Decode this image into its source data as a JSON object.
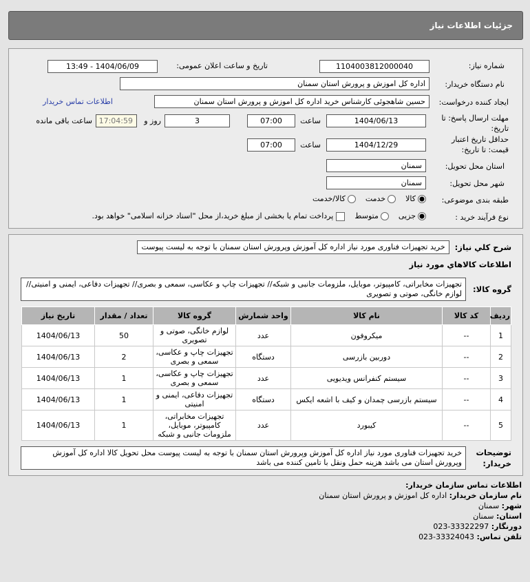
{
  "header": {
    "title": "جزئیات اطلاعات نیاز"
  },
  "form": {
    "need_number_label": "شماره نیاز:",
    "need_number": "1104003812000040",
    "announce_label": "تاریخ و ساعت اعلان عمومی:",
    "announce_value": "1404/06/09 - 13:49",
    "buyer_label": "نام دستگاه خریدار:",
    "buyer": "اداره کل اموزش و پرورش استان سمنان",
    "creator_label": "ایجاد کننده درخواست:",
    "creator": "حسین شاهجوئی کارشناس خرید اداره کل اموزش و پرورش استان سمنان",
    "contact_link": "اطلاعات تماس خریدار",
    "deadline_label": "مهلت ارسال پاسخ: تا تاریخ:",
    "deadline_date": "1404/06/13",
    "time_label": "ساعت",
    "deadline_time": "07:00",
    "days": "3",
    "days_label": "روز و",
    "remaining": "17:04:59",
    "remaining_label": "ساعت باقی مانده",
    "validity_label": "حداقل تاریخ اعتبار قیمت: تا تاریخ:",
    "validity_date": "1404/12/29",
    "validity_time": "07:00",
    "province_label": "استان محل تحویل:",
    "province": "سمنان",
    "city_label": "شهر محل تحویل:",
    "city": "سمنان",
    "category_label": "طبقه بندی موضوعی:",
    "category_options": [
      "کالا",
      "خدمت",
      "کالا/خدمت"
    ],
    "process_label": "نوع فرآیند خرید :",
    "process_options": [
      "جزیی",
      "متوسط"
    ],
    "payment_note": "پرداخت تمام یا بخشی از مبلغ خرید،از محل \"اسناد خزانه اسلامی\" خواهد بود."
  },
  "details": {
    "summary_label": "شرح کلي نیاز:",
    "summary": "خرید تجهیزات فناوری مورد نیاز اداره کل آموزش وپرورش استان سمنان با توجه به لیست پیوست",
    "goods_title": "اطلاعات کالاهاي مورد نیاز",
    "group_label": "گروه کالا:",
    "group": "تجهیزات مخابراتی، کامپیوتر، موبایل، ملزومات جانبی و شبکه// تجهیزات چاپ و عکاسی، سمعی و بصری// تجهیزات دفاعی، ایمنی و امنیتی// لوازم خانگی، صوتی و تصویری",
    "columns": [
      "ردیف",
      "کد کالا",
      "نام کالا",
      "واحد شمارش",
      "گروه کالا",
      "تعداد / مقدار",
      "تاریخ نیاز"
    ],
    "rows": [
      [
        "1",
        "--",
        "میکروفون",
        "عدد",
        "لوازم خانگی، صوتی و تصویری",
        "50",
        "1404/06/13"
      ],
      [
        "2",
        "--",
        "دوربین بازرسی",
        "دستگاه",
        "تجهیزات چاپ و عکاسی، سمعی و بصری",
        "2",
        "1404/06/13"
      ],
      [
        "3",
        "--",
        "سیستم کنفرانس ویدیویی",
        "عدد",
        "تجهیزات چاپ و عکاسی، سمعی و بصری",
        "1",
        "1404/06/13"
      ],
      [
        "4",
        "--",
        "سیستم بازرسی چمدان و کیف با اشعه ایکس",
        "دستگاه",
        "تجهیزات دفاعی، ایمنی و امنیتی",
        "1",
        "1404/06/13"
      ],
      [
        "5",
        "--",
        "کیبورد",
        "عدد",
        "تجهیزات مخابراتی، کامپیوتر، موبایل، ملزومات جانبی و شبکه",
        "1",
        "1404/06/13"
      ]
    ],
    "notes_label": "توضیحات خریدار:",
    "notes": "خرید تجهیزات فناوری مورد نیاز اداره کل آموزش وپرورش استان سمنان با توجه به لیست پیوست محل تحویل کالا اداره کل آموزش وپرورش استان می باشد هزینه حمل ونقل با تامین کننده می باشد"
  },
  "contact": {
    "title": "اطلاعات تماس سازمان خریدار:",
    "org_label": "نام سازمان خریدار:",
    "org": "اداره کل اموزش و پرورش استان سمنان",
    "city_label": "شهر:",
    "city": "سمنان",
    "province_label": "استان:",
    "province": "سمنان",
    "fax_label": "دورنگار:",
    "fax": "023-33322297",
    "phone_label": "تلفن تماس:",
    "phone": "023-33324043"
  }
}
